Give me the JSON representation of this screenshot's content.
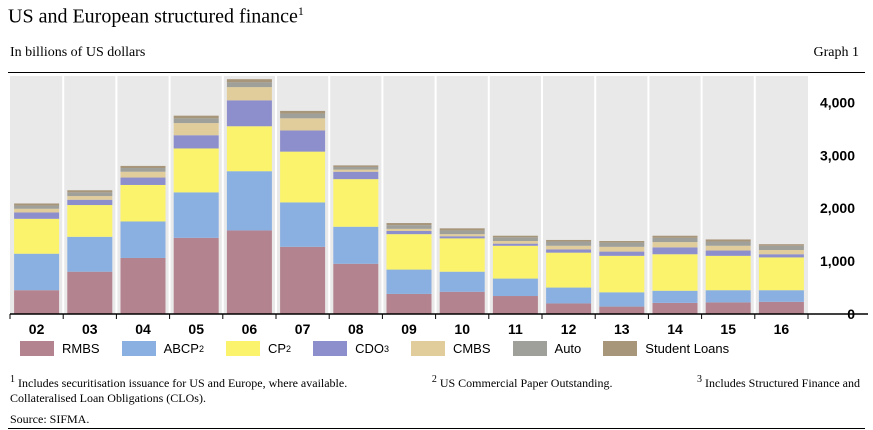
{
  "header": {
    "title": "US and European structured finance",
    "title_sup": "1",
    "subtitle": "In billions of US dollars",
    "graph_label": "Graph 1"
  },
  "chart_data": {
    "type": "bar",
    "stacked": true,
    "categories": [
      "02",
      "03",
      "04",
      "05",
      "06",
      "07",
      "08",
      "09",
      "10",
      "11",
      "12",
      "13",
      "14",
      "15",
      "16"
    ],
    "ylim": [
      0,
      4500
    ],
    "yticks": [
      0,
      1000,
      2000,
      3000,
      4000
    ],
    "ytick_labels": [
      "0",
      "1,000",
      "2,000",
      "3,000",
      "4,000"
    ],
    "y_axis_side": "right",
    "grid": false,
    "series": [
      {
        "name": "RMBS",
        "sup": "",
        "color": "#b3838f",
        "values": [
          450,
          800,
          1060,
          1440,
          1580,
          1270,
          950,
          380,
          420,
          340,
          200,
          140,
          210,
          220,
          230
        ]
      },
      {
        "name": "ABCP",
        "sup": "2",
        "color": "#89b0e0",
        "values": [
          690,
          660,
          690,
          860,
          1120,
          840,
          700,
          460,
          380,
          330,
          300,
          270,
          230,
          230,
          220
        ]
      },
      {
        "name": "CP",
        "sup": "2",
        "color": "#fbf36b",
        "values": [
          660,
          600,
          690,
          830,
          850,
          960,
          900,
          670,
          630,
          620,
          660,
          690,
          690,
          650,
          620
        ]
      },
      {
        "name": "CDO",
        "sup": "3",
        "color": "#8d8ecc",
        "values": [
          120,
          100,
          140,
          250,
          490,
          400,
          140,
          60,
          40,
          40,
          60,
          80,
          130,
          100,
          60
        ]
      },
      {
        "name": "CMBS",
        "sup": "",
        "color": "#e1cc9c",
        "values": [
          70,
          70,
          110,
          230,
          250,
          230,
          40,
          40,
          40,
          50,
          70,
          90,
          100,
          90,
          80
        ]
      },
      {
        "name": "Auto",
        "sup": "",
        "color": "#9fa09a",
        "values": [
          60,
          70,
          70,
          90,
          90,
          90,
          50,
          70,
          70,
          70,
          80,
          80,
          80,
          80,
          80
        ]
      },
      {
        "name": "Student Loans",
        "sup": "",
        "color": "#a8967b",
        "values": [
          40,
          40,
          40,
          50,
          60,
          50,
          30,
          40,
          40,
          30,
          30,
          30,
          40,
          40,
          30
        ]
      }
    ]
  },
  "footnotes": {
    "fn1_mark": "1",
    "fn1": "Includes securitisation issuance for US and Europe, where available.",
    "fn2_mark": "2",
    "fn2": "US Commercial Paper Outstanding.",
    "fn3_mark": "3",
    "fn3_a": "Includes Structured Finance and",
    "fn3_b": "Collateralised Loan Obligations (CLOs).",
    "source": "Source: SIFMA."
  }
}
